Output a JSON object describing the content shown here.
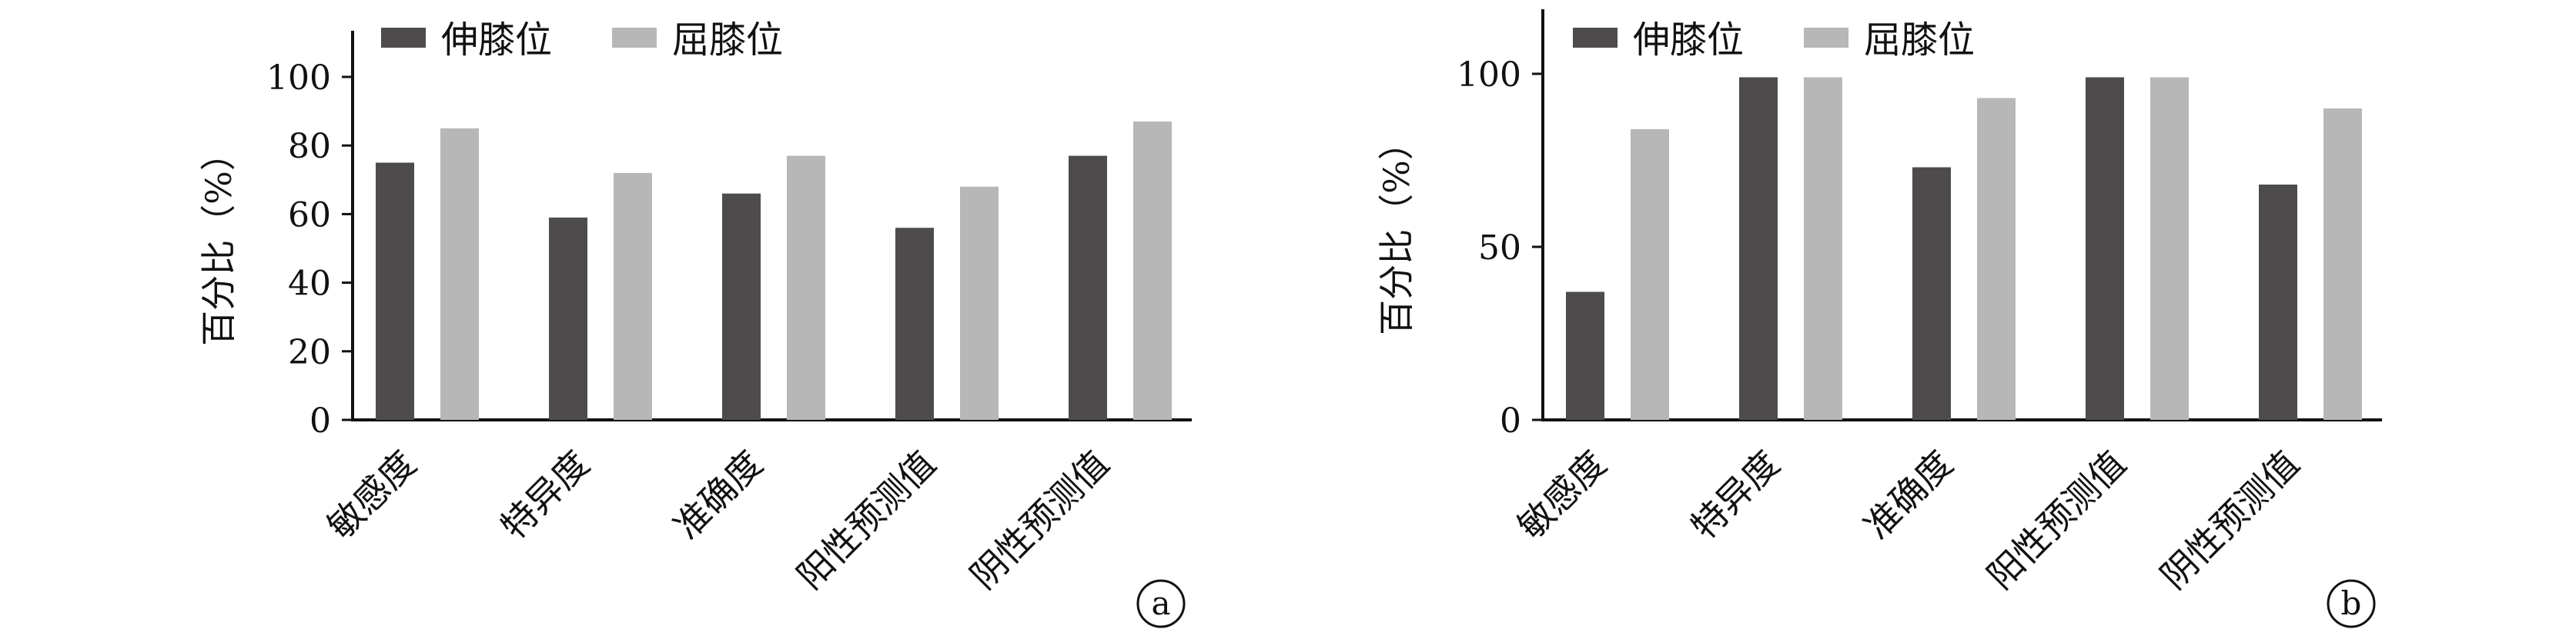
{
  "chart_data": [
    {
      "type": "bar",
      "panel_label": "a",
      "ylabel": "百分比（%）",
      "ylim": [
        0,
        100
      ],
      "yticks": [
        0,
        20,
        40,
        60,
        80,
        100
      ],
      "grid": false,
      "legend_position": "top-left",
      "categories": [
        "敏感度",
        "特异度",
        "准确度",
        "阳性预测值",
        "阴性预测值"
      ],
      "series": [
        {
          "name": "伸膝位",
          "color": "#4d4b4c",
          "values": [
            75,
            59,
            66,
            56,
            77
          ]
        },
        {
          "name": "屈膝位",
          "color": "#b7b7b7",
          "values": [
            85,
            72,
            77,
            68,
            87
          ]
        }
      ]
    },
    {
      "type": "bar",
      "panel_label": "b",
      "ylabel": "百分比（%）",
      "ylim": [
        0,
        100
      ],
      "yticks": [
        0,
        50,
        100
      ],
      "grid": false,
      "legend_position": "top-left",
      "categories": [
        "敏感度",
        "特异度",
        "准确度",
        "阳性预测值",
        "阴性预测值"
      ],
      "series": [
        {
          "name": "伸膝位",
          "color": "#4d4b4c",
          "values": [
            37,
            99,
            73,
            99,
            68
          ]
        },
        {
          "name": "屈膝位",
          "color": "#b7b7b7",
          "values": [
            84,
            99,
            93,
            99,
            90
          ]
        }
      ]
    }
  ]
}
